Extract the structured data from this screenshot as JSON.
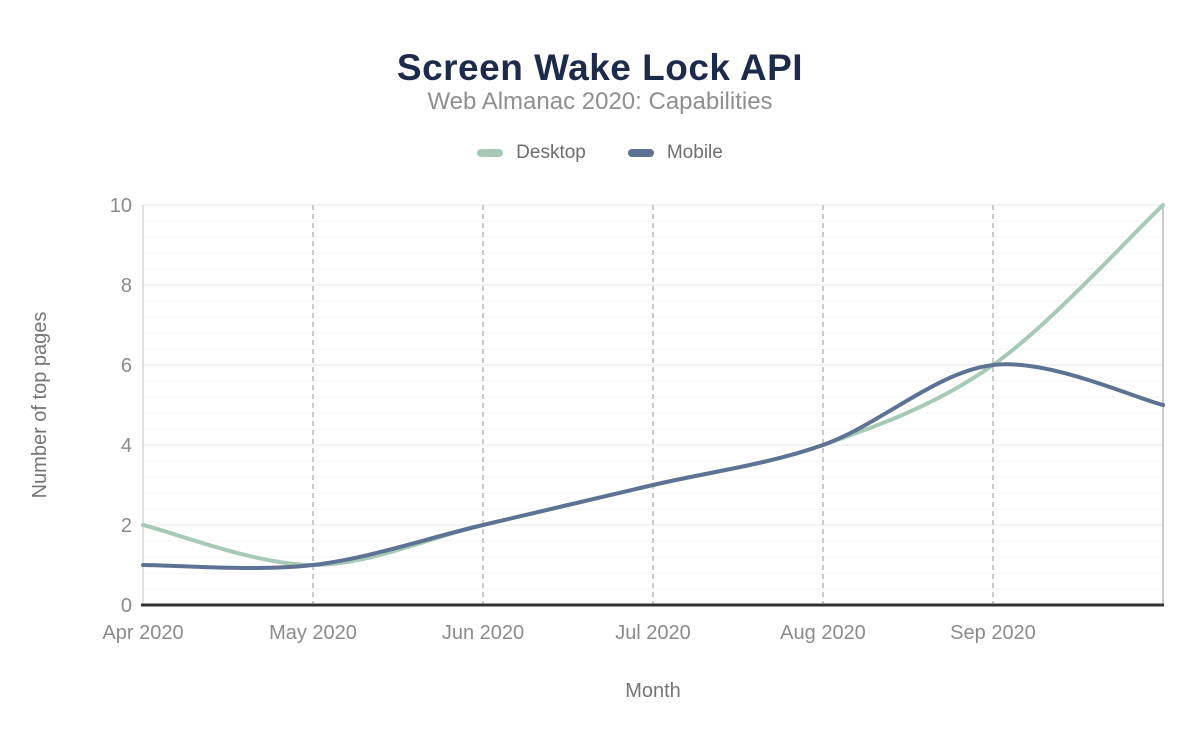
{
  "header": {
    "title": "Screen Wake Lock API",
    "subtitle": "Web Almanac 2020: Capabilities"
  },
  "colors": {
    "title": "#1e2a49",
    "subtitle": "#8f8f8f",
    "legend_text": "#6e6e6e",
    "tick_label": "#8b8b8b",
    "axis_title": "#757575",
    "axis_line": "#333333",
    "grid_major": "#e7e7e7",
    "grid_minor": "#f4f4f4",
    "grid_vertical_dashed": "#cbcbcb",
    "desktop_series": "#a6cab6",
    "mobile_series": "#5e7293"
  },
  "chart_data": {
    "type": "line",
    "title": "Screen Wake Lock API",
    "subtitle": "Web Almanac 2020: Capabilities",
    "xlabel": "Month",
    "ylabel": "Number of top pages",
    "categories": [
      "Apr 2020",
      "May 2020",
      "Jun 2020",
      "Jul 2020",
      "Aug 2020",
      "Sep 2020",
      ""
    ],
    "x_tick_labels": [
      "Apr 2020",
      "May 2020",
      "Jun 2020",
      "Jul 2020",
      "Aug 2020",
      "Sep 2020"
    ],
    "series": [
      {
        "name": "Desktop",
        "color": "#a6cab6",
        "values": [
          2,
          1,
          2,
          3,
          4,
          6,
          10
        ]
      },
      {
        "name": "Mobile",
        "color": "#5e7293",
        "values": [
          1,
          1,
          2,
          3,
          4,
          6,
          5
        ]
      }
    ],
    "ylim": [
      0,
      10
    ],
    "y_ticks": [
      0,
      2,
      4,
      6,
      8,
      10
    ],
    "y_minor_step": 0.4,
    "smooth": true,
    "grid": {
      "horizontal": true,
      "vertical_dashed": true
    },
    "legend_position": "top"
  }
}
